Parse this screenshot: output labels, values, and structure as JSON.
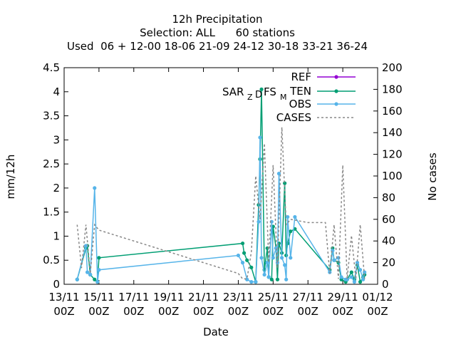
{
  "title_lines": [
    "12h Precipitation",
    "Selection: ALL      60 stations",
    "Used  06 + 12-00 18-06 21-09 24-12 30-18 33-21 36-24"
  ],
  "colors": {
    "ref": "#9400d3",
    "ten": "#009e73",
    "obs": "#56b4e9",
    "cases": "#888888"
  },
  "chart_data": {
    "type": "line",
    "xlabel": "Date",
    "ylabel": "mm/12h",
    "y2label": "No cases",
    "xlim": [
      "2023-11-13 00:00",
      "2023-12-01 00:00"
    ],
    "ylim": [
      0,
      4.5
    ],
    "y2lim": [
      0,
      200
    ],
    "x_ticks": [
      "13/11\n00Z",
      "15/11\n00Z",
      "17/11\n00Z",
      "19/11\n00Z",
      "21/11\n00Z",
      "23/11\n00Z",
      "25/11\n00Z",
      "27/11\n00Z",
      "29/11\n00Z",
      "01/12\n00Z"
    ],
    "y_ticks": [
      "0",
      "0.5",
      "1",
      "1.5",
      "2",
      "2.5",
      "3",
      "3.5",
      "4",
      "4.5"
    ],
    "y2_ticks": [
      "0",
      "20",
      "40",
      "60",
      "80",
      "100",
      "120",
      "140",
      "160",
      "180",
      "200"
    ],
    "annotation": {
      "text": "SAR",
      "sub1": "Z",
      "mid1": "D",
      "mid2": "FS",
      "sub2": "M"
    },
    "legend": {
      "placement": "top-right",
      "entries": [
        "REF",
        "TEN",
        "OBS",
        "CASES"
      ]
    },
    "series": [
      {
        "name": "TEN",
        "x": [
          "2023-11-13 18:00",
          "2023-11-14 06:00",
          "2023-11-14 08:00",
          "2023-11-14 12:00",
          "2023-11-14 18:00",
          "2023-11-14 22:00",
          "2023-11-15 00:00",
          "2023-11-23 06:00",
          "2023-11-23 08:00",
          "2023-11-23 12:00",
          "2023-11-23 18:00",
          "2023-11-24 00:00",
          "2023-11-24 04:00",
          "2023-11-24 06:00",
          "2023-11-24 08:00",
          "2023-11-24 12:00",
          "2023-11-24 16:00",
          "2023-11-24 18:00",
          "2023-11-24 22:00",
          "2023-11-25 00:00",
          "2023-11-25 04:00",
          "2023-11-25 06:00",
          "2023-11-25 08:00",
          "2023-11-25 12:00",
          "2023-11-25 16:00",
          "2023-11-25 18:00",
          "2023-11-25 20:00",
          "2023-11-26 00:00",
          "2023-11-26 06:00",
          "2023-11-28 06:00",
          "2023-11-28 10:00",
          "2023-11-28 12:00",
          "2023-11-28 18:00",
          "2023-11-28 22:00",
          "2023-11-29 04:00",
          "2023-11-29 06:00",
          "2023-11-29 12:00",
          "2023-11-29 16:00",
          "2023-11-29 20:00",
          "2023-11-30 00:00",
          "2023-11-30 04:00",
          "2023-11-30 06:00"
        ],
        "values": [
          0.1,
          0.75,
          0.8,
          0.2,
          0.1,
          0.05,
          0.55,
          0.85,
          0.65,
          0.5,
          0.35,
          0.05,
          1.65,
          2.6,
          4.05,
          0.3,
          0.75,
          0.15,
          0.1,
          1.2,
          0.75,
          0.1,
          0.85,
          0.65,
          2.1,
          0.6,
          0.85,
          1.1,
          1.15,
          0.3,
          0.75,
          0.5,
          0.45,
          0.1,
          0.05,
          0.1,
          0.25,
          0.1,
          0.4,
          0.05,
          0.15,
          0.2
        ]
      },
      {
        "name": "OBS",
        "x": [
          "2023-11-13 18:00",
          "2023-11-14 06:00",
          "2023-11-14 08:00",
          "2023-11-14 12:00",
          "2023-11-14 18:00",
          "2023-11-14 22:00",
          "2023-11-15 00:00",
          "2023-11-23 00:00",
          "2023-11-23 06:00",
          "2023-11-23 12:00",
          "2023-11-23 18:00",
          "2023-11-24 00:00",
          "2023-11-24 04:00",
          "2023-11-24 06:00",
          "2023-11-24 08:00",
          "2023-11-24 12:00",
          "2023-11-24 16:00",
          "2023-11-24 18:00",
          "2023-11-24 22:00",
          "2023-11-25 00:00",
          "2023-11-25 04:00",
          "2023-11-25 06:00",
          "2023-11-25 08:00",
          "2023-11-25 12:00",
          "2023-11-25 16:00",
          "2023-11-25 18:00",
          "2023-11-25 20:00",
          "2023-11-26 00:00",
          "2023-11-26 06:00",
          "2023-11-28 06:00",
          "2023-11-28 10:00",
          "2023-11-28 12:00",
          "2023-11-28 18:00",
          "2023-11-28 22:00",
          "2023-11-29 04:00",
          "2023-11-29 06:00",
          "2023-11-29 12:00",
          "2023-11-29 16:00",
          "2023-11-29 20:00",
          "2023-11-30 00:00",
          "2023-11-30 04:00",
          "2023-11-30 06:00"
        ],
        "values": [
          0.1,
          0.8,
          0.25,
          0.2,
          2.0,
          0.05,
          0.3,
          0.6,
          0.45,
          0.1,
          0.05,
          0.05,
          1.3,
          3.05,
          0.55,
          0.2,
          0.45,
          0.15,
          1.3,
          0.55,
          0.75,
          0.45,
          2.3,
          0.55,
          0.4,
          0.1,
          1.4,
          0.55,
          1.4,
          0.25,
          0.7,
          0.5,
          0.55,
          0.15,
          0.1,
          0.1,
          0.15,
          0.05,
          0.45,
          0.3,
          0.1,
          0.25
        ]
      },
      {
        "name": "CASES",
        "x": [
          "2023-11-13 18:00",
          "2023-11-14 00:00",
          "2023-11-14 06:00",
          "2023-11-14 12:00",
          "2023-11-14 18:00",
          "2023-11-15 00:00",
          "2023-11-23 00:00",
          "2023-11-23 06:00",
          "2023-11-23 12:00",
          "2023-11-23 18:00",
          "2023-11-24 00:00",
          "2023-11-24 06:00",
          "2023-11-24 12:00",
          "2023-11-24 18:00",
          "2023-11-25 00:00",
          "2023-11-25 06:00",
          "2023-11-25 12:00",
          "2023-11-25 18:00",
          "2023-11-26 00:00",
          "2023-11-27 00:00",
          "2023-11-28 00:00",
          "2023-11-28 06:00",
          "2023-11-28 12:00",
          "2023-11-28 18:00",
          "2023-11-29 00:00",
          "2023-11-29 06:00",
          "2023-11-29 12:00",
          "2023-11-29 18:00",
          "2023-11-30 00:00",
          "2023-11-30 06:00"
        ],
        "values": [
          55,
          15,
          55,
          10,
          55,
          50,
          10,
          5,
          5,
          30,
          100,
          60,
          130,
          20,
          110,
          15,
          145,
          55,
          60,
          57,
          57,
          10,
          55,
          5,
          110,
          5,
          45,
          5,
          55,
          5
        ]
      }
    ]
  }
}
